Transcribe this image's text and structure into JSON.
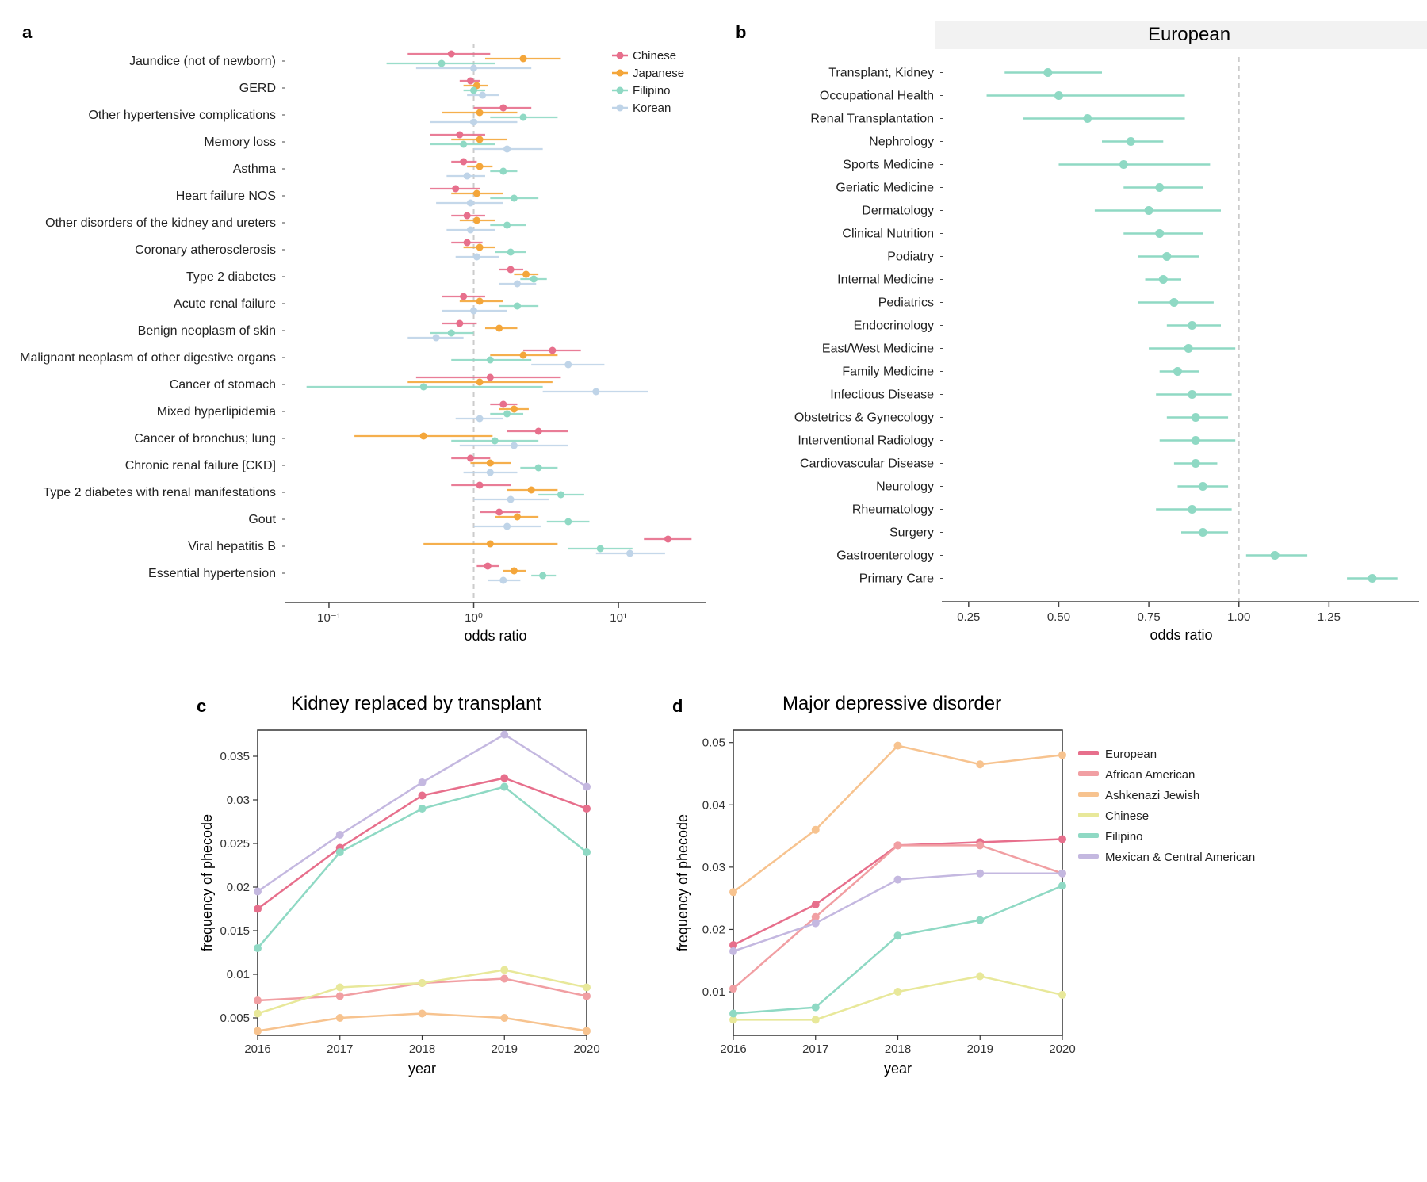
{
  "colors": {
    "chinese": "#e76f8c",
    "japanese": "#f4a63a",
    "filipino": "#8fd9c4",
    "korean": "#bfd4e8",
    "european": "#e76f8c",
    "african_american": "#f19fa3",
    "ashkenazi": "#f7c38f",
    "chinese_d": "#e8e89a",
    "filipino_d": "#8fd9c4",
    "mexican": "#c4b8e0",
    "grid": "#e8e8e8",
    "refline": "#cccccc",
    "green_b": "#8fd9c4",
    "axis": "#444444"
  },
  "fonts": {
    "axis_label": 18,
    "tick": 15,
    "cat": 16,
    "legend": 15,
    "title": 24,
    "panel_label": 22
  },
  "panelA": {
    "x_label": "odds ratio",
    "x_type": "log",
    "x_ticks": [
      0.1,
      1,
      10
    ],
    "x_tick_labels": [
      "10⁻¹",
      "10⁰",
      "10¹"
    ],
    "xlim": [
      0.05,
      40
    ],
    "legend": [
      {
        "label": "Chinese",
        "color": "#e76f8c"
      },
      {
        "label": "Japanese",
        "color": "#f4a63a"
      },
      {
        "label": "Filipino",
        "color": "#8fd9c4"
      },
      {
        "label": "Korean",
        "color": "#bfd4e8"
      }
    ],
    "series_order": [
      "chinese",
      "japanese",
      "filipino",
      "korean"
    ],
    "rows": [
      {
        "label": "Jaundice (not of newborn)",
        "chinese": {
          "or": 0.7,
          "lo": 0.35,
          "hi": 1.3
        },
        "japanese": {
          "or": 2.2,
          "lo": 1.2,
          "hi": 4.0
        },
        "filipino": {
          "or": 0.6,
          "lo": 0.25,
          "hi": 1.4
        },
        "korean": {
          "or": 1.0,
          "lo": 0.4,
          "hi": 2.5
        }
      },
      {
        "label": "GERD",
        "chinese": {
          "or": 0.95,
          "lo": 0.8,
          "hi": 1.1
        },
        "japanese": {
          "or": 1.05,
          "lo": 0.85,
          "hi": 1.25
        },
        "filipino": {
          "or": 1.0,
          "lo": 0.85,
          "hi": 1.2
        },
        "korean": {
          "or": 1.15,
          "lo": 0.9,
          "hi": 1.5
        }
      },
      {
        "label": "Other hypertensive complications",
        "chinese": {
          "or": 1.6,
          "lo": 1.0,
          "hi": 2.5
        },
        "japanese": {
          "or": 1.1,
          "lo": 0.6,
          "hi": 2.0
        },
        "filipino": {
          "or": 2.2,
          "lo": 1.3,
          "hi": 3.8
        },
        "korean": {
          "or": 1.0,
          "lo": 0.5,
          "hi": 2.0
        }
      },
      {
        "label": "Memory loss",
        "chinese": {
          "or": 0.8,
          "lo": 0.5,
          "hi": 1.2
        },
        "japanese": {
          "or": 1.1,
          "lo": 0.7,
          "hi": 1.7
        },
        "filipino": {
          "or": 0.85,
          "lo": 0.5,
          "hi": 1.4
        },
        "korean": {
          "or": 1.7,
          "lo": 1.0,
          "hi": 3.0
        }
      },
      {
        "label": "Asthma",
        "chinese": {
          "or": 0.85,
          "lo": 0.7,
          "hi": 1.05
        },
        "japanese": {
          "or": 1.1,
          "lo": 0.9,
          "hi": 1.35
        },
        "filipino": {
          "or": 1.6,
          "lo": 1.3,
          "hi": 2.0
        },
        "korean": {
          "or": 0.9,
          "lo": 0.65,
          "hi": 1.2
        }
      },
      {
        "label": "Heart failure NOS",
        "chinese": {
          "or": 0.75,
          "lo": 0.5,
          "hi": 1.1
        },
        "japanese": {
          "or": 1.05,
          "lo": 0.7,
          "hi": 1.6
        },
        "filipino": {
          "or": 1.9,
          "lo": 1.3,
          "hi": 2.8
        },
        "korean": {
          "or": 0.95,
          "lo": 0.55,
          "hi": 1.6
        }
      },
      {
        "label": "Other disorders of the kidney and ureters",
        "chinese": {
          "or": 0.9,
          "lo": 0.7,
          "hi": 1.2
        },
        "japanese": {
          "or": 1.05,
          "lo": 0.8,
          "hi": 1.4
        },
        "filipino": {
          "or": 1.7,
          "lo": 1.3,
          "hi": 2.3
        },
        "korean": {
          "or": 0.95,
          "lo": 0.65,
          "hi": 1.4
        }
      },
      {
        "label": "Coronary atherosclerosis",
        "chinese": {
          "or": 0.9,
          "lo": 0.7,
          "hi": 1.15
        },
        "japanese": {
          "or": 1.1,
          "lo": 0.85,
          "hi": 1.4
        },
        "filipino": {
          "or": 1.8,
          "lo": 1.4,
          "hi": 2.3
        },
        "korean": {
          "or": 1.05,
          "lo": 0.75,
          "hi": 1.5
        }
      },
      {
        "label": "Type 2 diabetes",
        "chinese": {
          "or": 1.8,
          "lo": 1.5,
          "hi": 2.2
        },
        "japanese": {
          "or": 2.3,
          "lo": 1.9,
          "hi": 2.8
        },
        "filipino": {
          "or": 2.6,
          "lo": 2.1,
          "hi": 3.2
        },
        "korean": {
          "or": 2.0,
          "lo": 1.5,
          "hi": 2.7
        }
      },
      {
        "label": "Acute renal failure",
        "chinese": {
          "or": 0.85,
          "lo": 0.6,
          "hi": 1.2
        },
        "japanese": {
          "or": 1.1,
          "lo": 0.8,
          "hi": 1.6
        },
        "filipino": {
          "or": 2.0,
          "lo": 1.5,
          "hi": 2.8
        },
        "korean": {
          "or": 1.0,
          "lo": 0.6,
          "hi": 1.7
        }
      },
      {
        "label": "Benign neoplasm of skin",
        "chinese": {
          "or": 0.8,
          "lo": 0.6,
          "hi": 1.05
        },
        "japanese": {
          "or": 1.5,
          "lo": 1.2,
          "hi": 2.0
        },
        "filipino": {
          "or": 0.7,
          "lo": 0.5,
          "hi": 1.0
        },
        "korean": {
          "or": 0.55,
          "lo": 0.35,
          "hi": 0.85
        }
      },
      {
        "label": "Malignant neoplasm of other digestive organs",
        "chinese": {
          "or": 3.5,
          "lo": 2.2,
          "hi": 5.5
        },
        "japanese": {
          "or": 2.2,
          "lo": 1.3,
          "hi": 3.8
        },
        "filipino": {
          "or": 1.3,
          "lo": 0.7,
          "hi": 2.5
        },
        "korean": {
          "or": 4.5,
          "lo": 2.5,
          "hi": 8.0
        }
      },
      {
        "label": "Cancer of stomach",
        "chinese": {
          "or": 1.3,
          "lo": 0.4,
          "hi": 4.0
        },
        "japanese": {
          "or": 1.1,
          "lo": 0.35,
          "hi": 3.5
        },
        "filipino": {
          "or": 0.45,
          "lo": 0.07,
          "hi": 3.0
        },
        "korean": {
          "or": 7.0,
          "lo": 3.0,
          "hi": 16.0
        }
      },
      {
        "label": "Mixed hyperlipidemia",
        "chinese": {
          "or": 1.6,
          "lo": 1.3,
          "hi": 2.0
        },
        "japanese": {
          "or": 1.9,
          "lo": 1.5,
          "hi": 2.4
        },
        "filipino": {
          "or": 1.7,
          "lo": 1.3,
          "hi": 2.2
        },
        "korean": {
          "or": 1.1,
          "lo": 0.75,
          "hi": 1.6
        }
      },
      {
        "label": "Cancer of bronchus; lung",
        "chinese": {
          "or": 2.8,
          "lo": 1.7,
          "hi": 4.5
        },
        "japanese": {
          "or": 0.45,
          "lo": 0.15,
          "hi": 1.35
        },
        "filipino": {
          "or": 1.4,
          "lo": 0.7,
          "hi": 2.8
        },
        "korean": {
          "or": 1.9,
          "lo": 0.8,
          "hi": 4.5
        }
      },
      {
        "label": "Chronic renal failure [CKD]",
        "chinese": {
          "or": 0.95,
          "lo": 0.7,
          "hi": 1.3
        },
        "japanese": {
          "or": 1.3,
          "lo": 0.95,
          "hi": 1.8
        },
        "filipino": {
          "or": 2.8,
          "lo": 2.1,
          "hi": 3.8
        },
        "korean": {
          "or": 1.3,
          "lo": 0.85,
          "hi": 2.0
        }
      },
      {
        "label": "Type 2 diabetes with renal manifestations",
        "chinese": {
          "or": 1.1,
          "lo": 0.7,
          "hi": 1.8
        },
        "japanese": {
          "or": 2.5,
          "lo": 1.7,
          "hi": 3.8
        },
        "filipino": {
          "or": 4.0,
          "lo": 2.8,
          "hi": 5.8
        },
        "korean": {
          "or": 1.8,
          "lo": 1.0,
          "hi": 3.3
        }
      },
      {
        "label": "Gout",
        "chinese": {
          "or": 1.5,
          "lo": 1.1,
          "hi": 2.1
        },
        "japanese": {
          "or": 2.0,
          "lo": 1.4,
          "hi": 2.8
        },
        "filipino": {
          "or": 4.5,
          "lo": 3.2,
          "hi": 6.3
        },
        "korean": {
          "or": 1.7,
          "lo": 1.0,
          "hi": 2.9
        }
      },
      {
        "label": "Viral hepatitis B",
        "chinese": {
          "or": 22.0,
          "lo": 15.0,
          "hi": 32.0
        },
        "japanese": {
          "or": 1.3,
          "lo": 0.45,
          "hi": 3.8
        },
        "filipino": {
          "or": 7.5,
          "lo": 4.5,
          "hi": 12.5
        },
        "korean": {
          "or": 12.0,
          "lo": 7.0,
          "hi": 21.0
        }
      },
      {
        "label": "Essential hypertension",
        "chinese": {
          "or": 1.25,
          "lo": 1.05,
          "hi": 1.5
        },
        "japanese": {
          "or": 1.9,
          "lo": 1.6,
          "hi": 2.3
        },
        "filipino": {
          "or": 3.0,
          "lo": 2.5,
          "hi": 3.7
        },
        "korean": {
          "or": 1.6,
          "lo": 1.25,
          "hi": 2.1
        }
      }
    ]
  },
  "panelB": {
    "title": "European",
    "x_label": "odds ratio",
    "x_ticks": [
      0.25,
      0.5,
      0.75,
      1.0,
      1.25
    ],
    "xlim": [
      0.18,
      1.5
    ],
    "refline": 1.0,
    "color": "#8fd9c4",
    "rows": [
      {
        "label": "Transplant, Kidney",
        "or": 0.47,
        "lo": 0.35,
        "hi": 0.62
      },
      {
        "label": "Occupational Health",
        "or": 0.5,
        "lo": 0.3,
        "hi": 0.85
      },
      {
        "label": "Renal Transplantation",
        "or": 0.58,
        "lo": 0.4,
        "hi": 0.85
      },
      {
        "label": "Nephrology",
        "or": 0.7,
        "lo": 0.62,
        "hi": 0.79
      },
      {
        "label": "Sports Medicine",
        "or": 0.68,
        "lo": 0.5,
        "hi": 0.92
      },
      {
        "label": "Geriatic Medicine",
        "or": 0.78,
        "lo": 0.68,
        "hi": 0.9
      },
      {
        "label": "Dermatology",
        "or": 0.75,
        "lo": 0.6,
        "hi": 0.95
      },
      {
        "label": "Clinical Nutrition",
        "or": 0.78,
        "lo": 0.68,
        "hi": 0.9
      },
      {
        "label": "Podiatry",
        "or": 0.8,
        "lo": 0.72,
        "hi": 0.89
      },
      {
        "label": "Internal Medicine",
        "or": 0.79,
        "lo": 0.74,
        "hi": 0.84
      },
      {
        "label": "Pediatrics",
        "or": 0.82,
        "lo": 0.72,
        "hi": 0.93
      },
      {
        "label": "Endocrinology",
        "or": 0.87,
        "lo": 0.8,
        "hi": 0.95
      },
      {
        "label": "East/West Medicine",
        "or": 0.86,
        "lo": 0.75,
        "hi": 0.99
      },
      {
        "label": "Family Medicine",
        "or": 0.83,
        "lo": 0.78,
        "hi": 0.89
      },
      {
        "label": "Infectious Disease",
        "or": 0.87,
        "lo": 0.77,
        "hi": 0.98
      },
      {
        "label": "Obstetrics & Gynecology",
        "or": 0.88,
        "lo": 0.8,
        "hi": 0.97
      },
      {
        "label": "Interventional Radiology",
        "or": 0.88,
        "lo": 0.78,
        "hi": 0.99
      },
      {
        "label": "Cardiovascular Disease",
        "or": 0.88,
        "lo": 0.82,
        "hi": 0.94
      },
      {
        "label": "Neurology",
        "or": 0.9,
        "lo": 0.83,
        "hi": 0.97
      },
      {
        "label": "Rheumatology",
        "or": 0.87,
        "lo": 0.77,
        "hi": 0.98
      },
      {
        "label": "Surgery",
        "or": 0.9,
        "lo": 0.84,
        "hi": 0.97
      },
      {
        "label": "Gastroenterology",
        "or": 1.1,
        "lo": 1.02,
        "hi": 1.19
      },
      {
        "label": "Primary Care",
        "or": 1.37,
        "lo": 1.3,
        "hi": 1.44
      }
    ]
  },
  "panelC": {
    "title": "Kidney replaced by transplant",
    "x_label": "year",
    "y_label": "frequency of phecode",
    "xlim": [
      2016,
      2020
    ],
    "x_ticks": [
      2016,
      2017,
      2018,
      2019,
      2020
    ],
    "ylim": [
      0.003,
      0.038
    ],
    "y_ticks": [
      0.005,
      0.01,
      0.015,
      0.02,
      0.025,
      0.03,
      0.035
    ],
    "series": [
      {
        "key": "european",
        "color": "#e76f8c",
        "pts": [
          [
            2016,
            0.0175
          ],
          [
            2017,
            0.0245
          ],
          [
            2018,
            0.0305
          ],
          [
            2019,
            0.0325
          ],
          [
            2020,
            0.029
          ]
        ]
      },
      {
        "key": "african_american",
        "color": "#f19fa3",
        "pts": [
          [
            2016,
            0.007
          ],
          [
            2017,
            0.0075
          ],
          [
            2018,
            0.009
          ],
          [
            2019,
            0.0095
          ],
          [
            2020,
            0.0075
          ]
        ]
      },
      {
        "key": "ashkenazi",
        "color": "#f7c38f",
        "pts": [
          [
            2016,
            0.0035
          ],
          [
            2017,
            0.005
          ],
          [
            2018,
            0.0055
          ],
          [
            2019,
            0.005
          ],
          [
            2020,
            0.0035
          ]
        ]
      },
      {
        "key": "chinese_d",
        "color": "#e8e89a",
        "pts": [
          [
            2016,
            0.0055
          ],
          [
            2017,
            0.0085
          ],
          [
            2018,
            0.009
          ],
          [
            2019,
            0.0105
          ],
          [
            2020,
            0.0085
          ]
        ]
      },
      {
        "key": "filipino_d",
        "color": "#8fd9c4",
        "pts": [
          [
            2016,
            0.013
          ],
          [
            2017,
            0.024
          ],
          [
            2018,
            0.029
          ],
          [
            2019,
            0.0315
          ],
          [
            2020,
            0.024
          ]
        ]
      },
      {
        "key": "mexican",
        "color": "#c4b8e0",
        "pts": [
          [
            2016,
            0.0195
          ],
          [
            2017,
            0.026
          ],
          [
            2018,
            0.032
          ],
          [
            2019,
            0.0375
          ],
          [
            2020,
            0.0315
          ]
        ]
      }
    ]
  },
  "panelD": {
    "title": "Major depressive disorder",
    "x_label": "year",
    "y_label": "frequency of phecode",
    "xlim": [
      2016,
      2020
    ],
    "x_ticks": [
      2016,
      2017,
      2018,
      2019,
      2020
    ],
    "ylim": [
      0.003,
      0.052
    ],
    "y_ticks": [
      0.01,
      0.02,
      0.03,
      0.04,
      0.05
    ],
    "series": [
      {
        "key": "european",
        "color": "#e76f8c",
        "pts": [
          [
            2016,
            0.0175
          ],
          [
            2017,
            0.024
          ],
          [
            2018,
            0.0335
          ],
          [
            2019,
            0.034
          ],
          [
            2020,
            0.0345
          ]
        ]
      },
      {
        "key": "african_american",
        "color": "#f19fa3",
        "pts": [
          [
            2016,
            0.0105
          ],
          [
            2017,
            0.022
          ],
          [
            2018,
            0.0335
          ],
          [
            2019,
            0.0335
          ],
          [
            2020,
            0.029
          ]
        ]
      },
      {
        "key": "ashkenazi",
        "color": "#f7c38f",
        "pts": [
          [
            2016,
            0.026
          ],
          [
            2017,
            0.036
          ],
          [
            2018,
            0.0495
          ],
          [
            2019,
            0.0465
          ],
          [
            2020,
            0.048
          ]
        ]
      },
      {
        "key": "chinese_d",
        "color": "#e8e89a",
        "pts": [
          [
            2016,
            0.0055
          ],
          [
            2017,
            0.0055
          ],
          [
            2018,
            0.01
          ],
          [
            2019,
            0.0125
          ],
          [
            2020,
            0.0095
          ]
        ]
      },
      {
        "key": "filipino_d",
        "color": "#8fd9c4",
        "pts": [
          [
            2016,
            0.0065
          ],
          [
            2017,
            0.0075
          ],
          [
            2018,
            0.019
          ],
          [
            2019,
            0.0215
          ],
          [
            2020,
            0.027
          ]
        ]
      },
      {
        "key": "mexican",
        "color": "#c4b8e0",
        "pts": [
          [
            2016,
            0.0165
          ],
          [
            2017,
            0.021
          ],
          [
            2018,
            0.028
          ],
          [
            2019,
            0.029
          ],
          [
            2020,
            0.029
          ]
        ]
      }
    ],
    "legend": [
      {
        "label": "European",
        "color": "#e76f8c"
      },
      {
        "label": "African American",
        "color": "#f19fa3"
      },
      {
        "label": "Ashkenazi Jewish",
        "color": "#f7c38f"
      },
      {
        "label": "Chinese",
        "color": "#e8e89a"
      },
      {
        "label": "Filipino",
        "color": "#8fd9c4"
      },
      {
        "label": "Mexican & Central American",
        "color": "#c4b8e0"
      }
    ]
  },
  "labels": {
    "a": "a",
    "b": "b",
    "c": "c",
    "d": "d"
  }
}
